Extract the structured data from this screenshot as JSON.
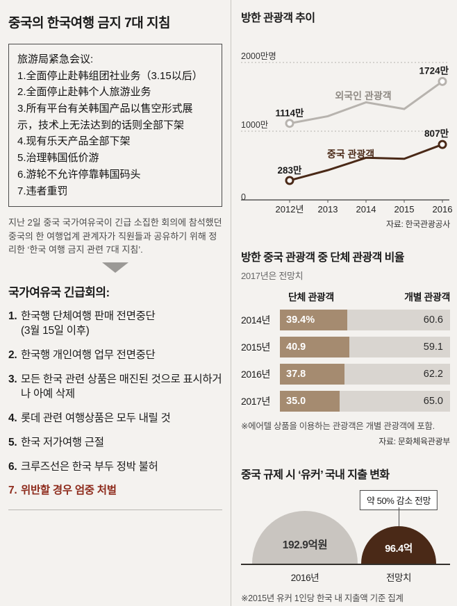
{
  "left_column": {
    "title": "중국의 한국여행 금지 7대 지침",
    "memo_lines": [
      "旅游局紧急会议:",
      "1.全面停止赴韩组团社业务（3.15以后）",
      "2.全面停止赴韩个人旅游业务",
      "3.所有平台有关韩国产品以售空形式展示，技术上无法达到的话则全部下架",
      "4.现有乐天产品全部下架",
      "5.治理韩国低价游",
      "6.游轮不允许停靠韩国码头",
      "7.违者重罚"
    ],
    "caption": "지난 2일 중국 국가여유국이 긴급 소집한 회의에 참석했던 중국의 한 여행업계 관계자가 직원들과 공유하기 위해 정리한 ‘한국 여행 금지 관련 7대 지침’.",
    "meeting_heading": "국가여유국 긴급회의:",
    "directives": [
      {
        "no": "1.",
        "text": "한국행 단체여행 판매 전면중단\n(3월 15일 이후)",
        "highlight": false
      },
      {
        "no": "2.",
        "text": "한국행 개인여행 업무 전면중단",
        "highlight": false
      },
      {
        "no": "3.",
        "text": "모든 한국 관련 상품은 매진된 것으로 표시하거나 아예 삭제",
        "highlight": false
      },
      {
        "no": "4.",
        "text": "롯데 관련 여행상품은 모두 내릴 것",
        "highlight": false
      },
      {
        "no": "5.",
        "text": "한국 저가여행 근절",
        "highlight": false
      },
      {
        "no": "6.",
        "text": "크루즈선은 한국 부두 정박 불허",
        "highlight": false
      },
      {
        "no": "7.",
        "text": "위반할 경우 엄중 처벌",
        "highlight": true
      }
    ]
  },
  "chart_data": [
    {
      "type": "line",
      "title": "방한 관광객 추이",
      "x": [
        "2012년",
        "2013",
        "2014",
        "2015",
        "2016"
      ],
      "ylim": [
        0,
        2000
      ],
      "yticks": [
        "2000만명",
        "1000만",
        "0"
      ],
      "grid": "dashed horizontal at 1000 and 2000",
      "unit": "만 명",
      "series": [
        {
          "name": "외국인 관광객",
          "color": "#b7b3ae",
          "label_color": "#8f8a84",
          "values": [
            1114,
            1218,
            1420,
            1323,
            1724
          ],
          "value_labels": [
            "1114만",
            "1724만"
          ]
        },
        {
          "name": "중국 관광객",
          "color": "#4a2917",
          "label_color": "#4a2917",
          "values": [
            283,
            433,
            613,
            598,
            807
          ],
          "value_labels": [
            "283만",
            "807만"
          ]
        }
      ],
      "source": "자료: 한국관광공사"
    },
    {
      "type": "bar",
      "title": "방한 중국 관광객 중 단체 관광객 비율",
      "subtitle": "2017년은 전망치",
      "orientation": "horizontal-stacked",
      "categories": [
        "2014년",
        "2015년",
        "2016년",
        "2017년"
      ],
      "series": [
        {
          "name": "단체 관광객",
          "color": "#a58b70",
          "values": [
            39.4,
            40.9,
            37.8,
            35.0
          ],
          "display": [
            "39.4%",
            "40.9",
            "37.8",
            "35.0"
          ]
        },
        {
          "name": "개별 관광객",
          "color": "#d9d5d0",
          "values": [
            60.6,
            59.1,
            62.2,
            65.0
          ],
          "display": [
            "60.6",
            "59.1",
            "62.2",
            "65.0"
          ]
        }
      ],
      "note": "※에어텔 상품을 이용하는 관광객은 개별 관광객에 포함.",
      "source": "자료: 문화체육관광부"
    },
    {
      "type": "area",
      "title": "중국 규제 시 ‘유커’ 국내 지출 변화",
      "callout": "약 50% 감소 전망",
      "items": [
        {
          "label": "2016년",
          "value": 192.9,
          "display": "192.9억원",
          "color": "#c9c5c0",
          "text_color": "#333333"
        },
        {
          "label": "전망치",
          "value": 96.4,
          "display": "96.4억",
          "color": "#4a2917",
          "text_color": "#ffffff"
        }
      ],
      "note": "※2015년 유커 1인당 한국 내 지출액 기준 집계"
    }
  ]
}
